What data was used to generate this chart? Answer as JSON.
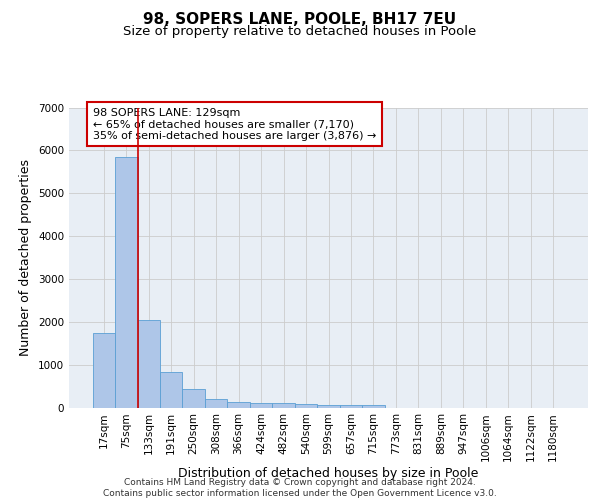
{
  "title_line1": "98, SOPERS LANE, POOLE, BH17 7EU",
  "title_line2": "Size of property relative to detached houses in Poole",
  "xlabel": "Distribution of detached houses by size in Poole",
  "ylabel": "Number of detached properties",
  "bar_labels": [
    "17sqm",
    "75sqm",
    "133sqm",
    "191sqm",
    "250sqm",
    "308sqm",
    "366sqm",
    "424sqm",
    "482sqm",
    "540sqm",
    "599sqm",
    "657sqm",
    "715sqm",
    "773sqm",
    "831sqm",
    "889sqm",
    "947sqm",
    "1006sqm",
    "1064sqm",
    "1122sqm",
    "1180sqm"
  ],
  "bar_values": [
    1750,
    5850,
    2050,
    820,
    430,
    200,
    120,
    100,
    95,
    80,
    65,
    50,
    50,
    0,
    0,
    0,
    0,
    0,
    0,
    0,
    0
  ],
  "bar_color": "#aec6e8",
  "bar_edge_color": "#5a9fd4",
  "vline_color": "#cc0000",
  "vline_pos": 1.5,
  "annotation_text": "98 SOPERS LANE: 129sqm\n← 65% of detached houses are smaller (7,170)\n35% of semi-detached houses are larger (3,876) →",
  "annotation_box_color": "#ffffff",
  "annotation_box_edge": "#cc0000",
  "ylim": [
    0,
    7000
  ],
  "yticks": [
    0,
    1000,
    2000,
    3000,
    4000,
    5000,
    6000,
    7000
  ],
  "grid_color": "#cccccc",
  "bg_color": "#e8eef5",
  "footer_text": "Contains HM Land Registry data © Crown copyright and database right 2024.\nContains public sector information licensed under the Open Government Licence v3.0.",
  "title_fontsize": 11,
  "subtitle_fontsize": 9.5,
  "axis_label_fontsize": 9,
  "tick_fontsize": 7.5,
  "footer_fontsize": 6.5
}
